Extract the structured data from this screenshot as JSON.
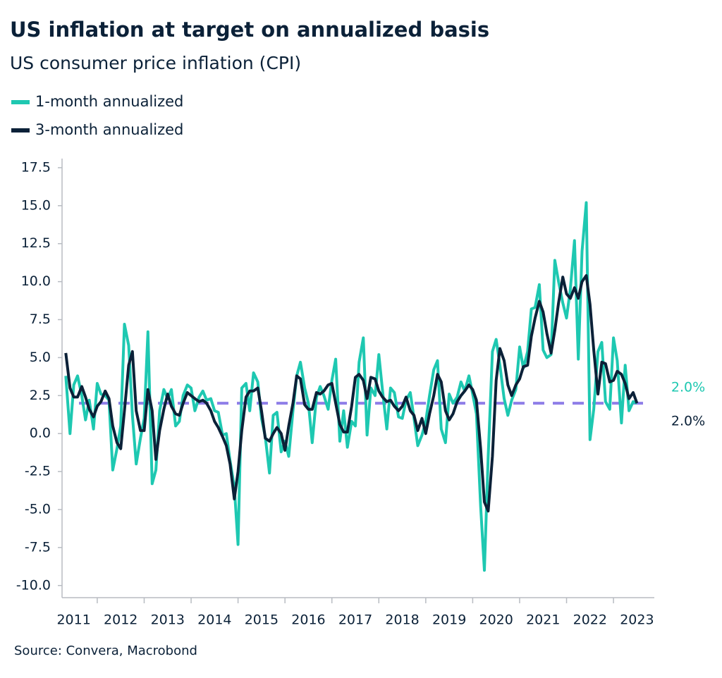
{
  "chart_data": {
    "type": "line",
    "title": "US inflation at target on annualized basis",
    "subtitle": "US consumer price inflation (CPI)",
    "source": "Source: Convera, Macrobond",
    "xlim": [
      2011.25,
      2023.87
    ],
    "xticks": [
      {
        "value": 2011.5,
        "label": "2011"
      },
      {
        "value": 2012.5,
        "label": "2012"
      },
      {
        "value": 2013.5,
        "label": "2013"
      },
      {
        "value": 2014.5,
        "label": "2014"
      },
      {
        "value": 2015.5,
        "label": "2015"
      },
      {
        "value": 2016.5,
        "label": "2016"
      },
      {
        "value": 2017.5,
        "label": "2017"
      },
      {
        "value": 2018.5,
        "label": "2018"
      },
      {
        "value": 2019.5,
        "label": "2019"
      },
      {
        "value": 2020.5,
        "label": "2020"
      },
      {
        "value": 2021.5,
        "label": "2021"
      },
      {
        "value": 2022.5,
        "label": "2022"
      },
      {
        "value": 2023.5,
        "label": "2023"
      }
    ],
    "xtick_marks": [
      2012,
      2013,
      2014,
      2015,
      2016,
      2017,
      2018,
      2019,
      2020,
      2021,
      2022,
      2023
    ],
    "ylim": [
      -10.8,
      18.1
    ],
    "yticks": [
      {
        "value": -10,
        "label": "-10.0"
      },
      -7.5,
      {
        "value": -5,
        "label": "-5.0"
      },
      -2.5,
      {
        "value": 0,
        "label": "0.0"
      },
      2.5,
      {
        "value": 5,
        "label": "5.0"
      },
      7.5,
      {
        "value": 10,
        "label": "10.0"
      },
      12.5,
      {
        "value": 15,
        "label": "15.0"
      },
      17.5
    ],
    "reference_line": {
      "value": 2.0,
      "color": "#8f7ee8"
    },
    "x": [
      2011.33,
      2011.42,
      2011.5,
      2011.58,
      2011.67,
      2011.75,
      2011.83,
      2011.92,
      2012.0,
      2012.08,
      2012.17,
      2012.25,
      2012.33,
      2012.42,
      2012.5,
      2012.58,
      2012.67,
      2012.75,
      2012.83,
      2012.92,
      2013.0,
      2013.08,
      2013.17,
      2013.25,
      2013.33,
      2013.42,
      2013.5,
      2013.58,
      2013.67,
      2013.75,
      2013.83,
      2013.92,
      2014.0,
      2014.08,
      2014.17,
      2014.25,
      2014.33,
      2014.42,
      2014.5,
      2014.58,
      2014.67,
      2014.75,
      2014.83,
      2014.92,
      2015.0,
      2015.08,
      2015.17,
      2015.25,
      2015.33,
      2015.42,
      2015.5,
      2015.58,
      2015.67,
      2015.75,
      2015.83,
      2015.92,
      2016.0,
      2016.08,
      2016.17,
      2016.25,
      2016.33,
      2016.42,
      2016.5,
      2016.58,
      2016.67,
      2016.75,
      2016.83,
      2016.92,
      2017.0,
      2017.08,
      2017.17,
      2017.25,
      2017.33,
      2017.42,
      2017.5,
      2017.58,
      2017.67,
      2017.75,
      2017.83,
      2017.92,
      2018.0,
      2018.08,
      2018.17,
      2018.25,
      2018.33,
      2018.42,
      2018.5,
      2018.58,
      2018.67,
      2018.75,
      2018.83,
      2018.92,
      2019.0,
      2019.08,
      2019.17,
      2019.25,
      2019.33,
      2019.42,
      2019.5,
      2019.58,
      2019.67,
      2019.75,
      2019.83,
      2019.92,
      2020.0,
      2020.08,
      2020.17,
      2020.25,
      2020.33,
      2020.42,
      2020.5,
      2020.58,
      2020.67,
      2020.75,
      2020.83,
      2020.92,
      2021.0,
      2021.08,
      2021.17,
      2021.25,
      2021.33,
      2021.42,
      2021.5,
      2021.58,
      2021.67,
      2021.75,
      2021.83,
      2021.92,
      2022.0,
      2022.08,
      2022.17,
      2022.25,
      2022.33,
      2022.42,
      2022.5,
      2022.58,
      2022.67,
      2022.75,
      2022.83,
      2022.92,
      2023.0,
      2023.08,
      2023.17,
      2023.25,
      2023.33,
      2023.42,
      2023.5
    ],
    "series": [
      {
        "name": "1-month annualized",
        "color": "#1ec8b1",
        "end_label": "2.0%",
        "values": [
          3.8,
          0.0,
          3.2,
          3.8,
          2.5,
          0.9,
          2.2,
          0.3,
          3.3,
          2.6,
          2.5,
          2.2,
          -2.4,
          -1.0,
          0.5,
          7.2,
          5.8,
          1.2,
          -2.0,
          -0.3,
          1.0,
          6.7,
          -3.3,
          -2.4,
          1.5,
          2.9,
          2.3,
          2.9,
          0.5,
          0.8,
          2.5,
          3.2,
          3.0,
          1.5,
          2.4,
          2.8,
          2.2,
          2.3,
          1.5,
          1.4,
          -0.1,
          0.0,
          -1.8,
          -3.5,
          -7.3,
          3.0,
          3.3,
          1.5,
          4.0,
          3.4,
          1.0,
          -0.2,
          -2.6,
          1.2,
          1.4,
          -1.2,
          -0.5,
          -1.5,
          1.5,
          3.8,
          4.7,
          3.0,
          2.0,
          -0.6,
          2.4,
          3.1,
          2.5,
          1.6,
          3.5,
          4.9,
          -0.5,
          1.5,
          -0.9,
          0.8,
          0.5,
          4.7,
          6.3,
          -0.1,
          3.0,
          2.5,
          5.2,
          2.8,
          0.3,
          3.0,
          2.7,
          1.1,
          1.0,
          2.2,
          2.7,
          1.0,
          -0.8,
          -0.1,
          0.8,
          2.5,
          4.2,
          4.8,
          0.3,
          -0.6,
          2.6,
          2.0,
          2.4,
          3.4,
          2.8,
          3.8,
          2.6,
          1.3,
          -4.8,
          -9.0,
          -1.5,
          5.4,
          6.2,
          4.5,
          2.3,
          1.2,
          2.2,
          2.9,
          5.7,
          4.3,
          5.4,
          8.2,
          8.3,
          9.8,
          5.5,
          5.0,
          5.2,
          11.4,
          10.0,
          8.6,
          7.6,
          9.5,
          12.7,
          4.9,
          12.0,
          15.2,
          -0.4,
          1.6,
          5.4,
          6.0,
          2.1,
          1.6,
          6.3,
          4.8,
          0.7,
          4.5,
          1.5,
          2.1,
          2.0
        ]
      },
      {
        "name": "3-month annualized",
        "color": "#0b2138",
        "end_label": "2.0%",
        "values": [
          5.3,
          3.0,
          2.4,
          2.4,
          3.1,
          2.4,
          1.6,
          1.1,
          1.8,
          2.1,
          2.8,
          2.3,
          0.5,
          -0.6,
          -1.0,
          1.5,
          4.5,
          5.4,
          1.5,
          0.2,
          0.2,
          2.9,
          1.5,
          -1.7,
          0.2,
          1.6,
          2.6,
          1.8,
          1.3,
          1.2,
          2.0,
          2.7,
          2.5,
          2.3,
          2.1,
          2.2,
          2.0,
          1.5,
          0.8,
          0.4,
          -0.2,
          -0.8,
          -2.0,
          -4.3,
          -2.5,
          0.2,
          2.4,
          2.8,
          2.8,
          3.0,
          1.5,
          -0.3,
          -0.5,
          0.0,
          0.4,
          0.0,
          -1.1,
          0.5,
          2.0,
          3.8,
          3.6,
          1.9,
          1.6,
          1.6,
          2.7,
          2.6,
          2.8,
          3.2,
          3.3,
          2.0,
          0.6,
          0.1,
          0.1,
          1.8,
          3.7,
          3.9,
          3.5,
          2.3,
          3.7,
          3.6,
          2.8,
          2.4,
          2.1,
          2.2,
          1.8,
          1.5,
          1.8,
          2.4,
          1.5,
          1.2,
          0.2,
          1.0,
          0.0,
          1.3,
          2.5,
          3.9,
          3.4,
          1.5,
          0.9,
          1.3,
          2.1,
          2.5,
          2.8,
          3.2,
          2.9,
          2.2,
          -1.0,
          -4.5,
          -5.1,
          -1.5,
          3.5,
          5.6,
          4.8,
          3.2,
          2.5,
          3.2,
          3.6,
          4.4,
          4.5,
          6.4,
          7.6,
          8.7,
          8.0,
          6.6,
          5.3,
          6.8,
          8.6,
          10.3,
          9.2,
          8.9,
          9.6,
          8.9,
          10.0,
          10.4,
          8.5,
          5.5,
          2.6,
          4.7,
          4.6,
          3.4,
          3.5,
          4.1,
          3.9,
          3.3,
          2.3,
          2.7,
          2.0
        ]
      }
    ]
  }
}
